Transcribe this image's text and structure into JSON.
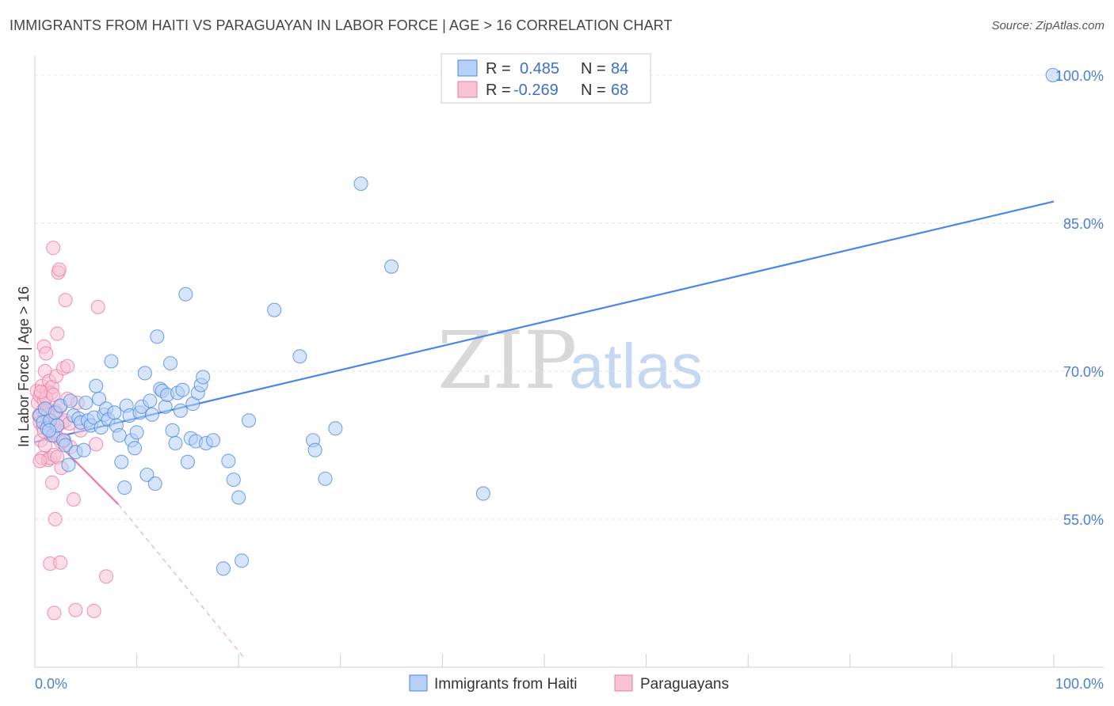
{
  "title": "IMMIGRANTS FROM HAITI VS PARAGUAYAN IN LABOR FORCE | AGE > 16 CORRELATION CHART",
  "source": "Source: ZipAtlas.com",
  "watermark": {
    "zip": "ZIP",
    "atlas": "atlas"
  },
  "colors": {
    "blue": "#4a86e8",
    "pink": "#e97ba0",
    "blue_fill": "#b7d0f5",
    "pink_fill": "#f8c3d3",
    "axis_text": "#4a7fd4"
  },
  "legend": {
    "r_label": "R =",
    "n_label": "N =",
    "series": [
      {
        "name": "Immigrants from Haiti",
        "r": "0.485",
        "n": "84"
      },
      {
        "name": "Paraguayans",
        "r": "-0.269",
        "n": "68"
      }
    ]
  },
  "chart_data": {
    "type": "scatter",
    "title": "IMMIGRANTS FROM HAITI VS PARAGUAYAN IN LABOR FORCE | AGE > 16 CORRELATION CHART",
    "xlabel": "",
    "ylabel": "In Labor Force | Age > 16",
    "xlim": [
      0,
      100
    ],
    "ylim": [
      40,
      102
    ],
    "x_tick_labels": [
      "0.0%",
      "100.0%"
    ],
    "y_ticks": [
      55,
      70,
      85,
      100
    ],
    "y_tick_labels": [
      "55.0%",
      "70.0%",
      "85.0%",
      "100.0%"
    ],
    "series": [
      {
        "name": "Immigrants from Haiti",
        "color": "#4a86e8",
        "trend": {
          "x": [
            0,
            100
          ],
          "y": [
            62.8,
            87.2
          ]
        },
        "points": [
          [
            0.5,
            65.5
          ],
          [
            0.8,
            64.8
          ],
          [
            1.0,
            66.2
          ],
          [
            1.2,
            64.2
          ],
          [
            1.5,
            65.0
          ],
          [
            1.8,
            63.5
          ],
          [
            2.0,
            65.8
          ],
          [
            2.2,
            64.5
          ],
          [
            2.5,
            66.5
          ],
          [
            2.8,
            63.0
          ],
          [
            3.0,
            62.5
          ],
          [
            3.3,
            60.5
          ],
          [
            3.5,
            67.0
          ],
          [
            3.8,
            65.5
          ],
          [
            4.0,
            61.8
          ],
          [
            4.3,
            65.2
          ],
          [
            4.5,
            64.8
          ],
          [
            4.8,
            62.0
          ],
          [
            5.0,
            66.8
          ],
          [
            5.2,
            65.0
          ],
          [
            5.5,
            64.5
          ],
          [
            5.8,
            65.3
          ],
          [
            6.0,
            68.5
          ],
          [
            6.3,
            67.2
          ],
          [
            6.5,
            64.3
          ],
          [
            6.8,
            65.6
          ],
          [
            7.0,
            66.2
          ],
          [
            7.2,
            65.1
          ],
          [
            7.5,
            71.0
          ],
          [
            7.8,
            65.8
          ],
          [
            8.0,
            64.5
          ],
          [
            8.3,
            63.5
          ],
          [
            8.5,
            60.8
          ],
          [
            8.8,
            58.2
          ],
          [
            9.0,
            66.5
          ],
          [
            9.3,
            65.5
          ],
          [
            9.5,
            63.0
          ],
          [
            9.8,
            62.2
          ],
          [
            10.0,
            63.8
          ],
          [
            10.3,
            65.8
          ],
          [
            10.5,
            66.4
          ],
          [
            10.8,
            69.8
          ],
          [
            11.0,
            59.5
          ],
          [
            11.3,
            67.0
          ],
          [
            11.5,
            65.6
          ],
          [
            11.8,
            58.6
          ],
          [
            12.0,
            73.5
          ],
          [
            12.3,
            68.2
          ],
          [
            12.5,
            68.0
          ],
          [
            12.8,
            66.4
          ],
          [
            13.0,
            67.6
          ],
          [
            13.3,
            70.8
          ],
          [
            13.5,
            64.0
          ],
          [
            13.8,
            62.7
          ],
          [
            14.0,
            67.8
          ],
          [
            14.3,
            66.0
          ],
          [
            14.5,
            68.1
          ],
          [
            14.8,
            77.8
          ],
          [
            15.0,
            60.8
          ],
          [
            15.3,
            63.2
          ],
          [
            15.5,
            66.7
          ],
          [
            15.8,
            62.9
          ],
          [
            16.0,
            67.8
          ],
          [
            16.3,
            68.6
          ],
          [
            16.5,
            69.4
          ],
          [
            16.8,
            62.7
          ],
          [
            17.5,
            63.0
          ],
          [
            18.5,
            50.0
          ],
          [
            19.0,
            60.9
          ],
          [
            19.5,
            59.0
          ],
          [
            20.0,
            57.2
          ],
          [
            20.3,
            50.8
          ],
          [
            21.0,
            65.0
          ],
          [
            23.5,
            76.2
          ],
          [
            26.0,
            71.5
          ],
          [
            27.3,
            63.0
          ],
          [
            27.5,
            62.0
          ],
          [
            28.5,
            59.1
          ],
          [
            29.5,
            64.2
          ],
          [
            32.0,
            89.0
          ],
          [
            35.0,
            80.6
          ],
          [
            44.0,
            57.6
          ],
          [
            99.9,
            100.0
          ],
          [
            1.4,
            64.0
          ]
        ]
      },
      {
        "name": "Paraguayans",
        "color": "#e97ba0",
        "trend": {
          "x": [
            0.2,
            8.2
          ],
          "y": [
            64.8,
            56.5
          ]
        },
        "trend_dashed": {
          "x": [
            8.2,
            20.5
          ],
          "y": [
            56.5,
            41.0
          ]
        },
        "points": [
          [
            0.2,
            68.0
          ],
          [
            0.3,
            66.8
          ],
          [
            0.4,
            65.5
          ],
          [
            0.5,
            67.5
          ],
          [
            0.5,
            64.8
          ],
          [
            0.6,
            63.0
          ],
          [
            0.7,
            61.2
          ],
          [
            0.7,
            68.5
          ],
          [
            0.8,
            66.0
          ],
          [
            0.8,
            64.3
          ],
          [
            0.9,
            67.0
          ],
          [
            0.9,
            72.5
          ],
          [
            1.0,
            70.0
          ],
          [
            1.0,
            65.8
          ],
          [
            1.0,
            62.5
          ],
          [
            1.1,
            71.8
          ],
          [
            1.2,
            66.2
          ],
          [
            1.2,
            68.0
          ],
          [
            1.3,
            61.0
          ],
          [
            1.3,
            64.5
          ],
          [
            1.4,
            69.0
          ],
          [
            1.4,
            65.0
          ],
          [
            1.5,
            50.5
          ],
          [
            1.5,
            61.2
          ],
          [
            1.6,
            67.8
          ],
          [
            1.6,
            63.5
          ],
          [
            1.7,
            68.4
          ],
          [
            1.7,
            58.7
          ],
          [
            1.8,
            82.5
          ],
          [
            1.8,
            65.8
          ],
          [
            1.9,
            45.5
          ],
          [
            1.9,
            61.5
          ],
          [
            2.0,
            55.0
          ],
          [
            2.0,
            64.0
          ],
          [
            2.1,
            69.5
          ],
          [
            2.1,
            66.0
          ],
          [
            2.2,
            73.8
          ],
          [
            2.2,
            61.3
          ],
          [
            2.3,
            80.0
          ],
          [
            2.3,
            63.2
          ],
          [
            2.4,
            80.3
          ],
          [
            2.5,
            50.6
          ],
          [
            2.5,
            66.4
          ],
          [
            2.6,
            60.2
          ],
          [
            2.7,
            64.8
          ],
          [
            2.8,
            70.3
          ],
          [
            2.9,
            63.0
          ],
          [
            3.0,
            77.2
          ],
          [
            3.0,
            65.0
          ],
          [
            3.2,
            70.5
          ],
          [
            3.2,
            67.2
          ],
          [
            3.4,
            64.7
          ],
          [
            3.5,
            62.3
          ],
          [
            3.8,
            57.0
          ],
          [
            4.0,
            45.8
          ],
          [
            4.2,
            66.8
          ],
          [
            4.5,
            64.0
          ],
          [
            5.8,
            45.7
          ],
          [
            6.0,
            62.6
          ],
          [
            6.2,
            76.5
          ],
          [
            7.0,
            49.2
          ],
          [
            0.5,
            60.9
          ],
          [
            1.1,
            67.3
          ],
          [
            1.3,
            65.6
          ],
          [
            0.6,
            67.9
          ],
          [
            0.9,
            63.9
          ],
          [
            1.8,
            67.6
          ],
          [
            2.6,
            62.8
          ]
        ]
      }
    ]
  }
}
